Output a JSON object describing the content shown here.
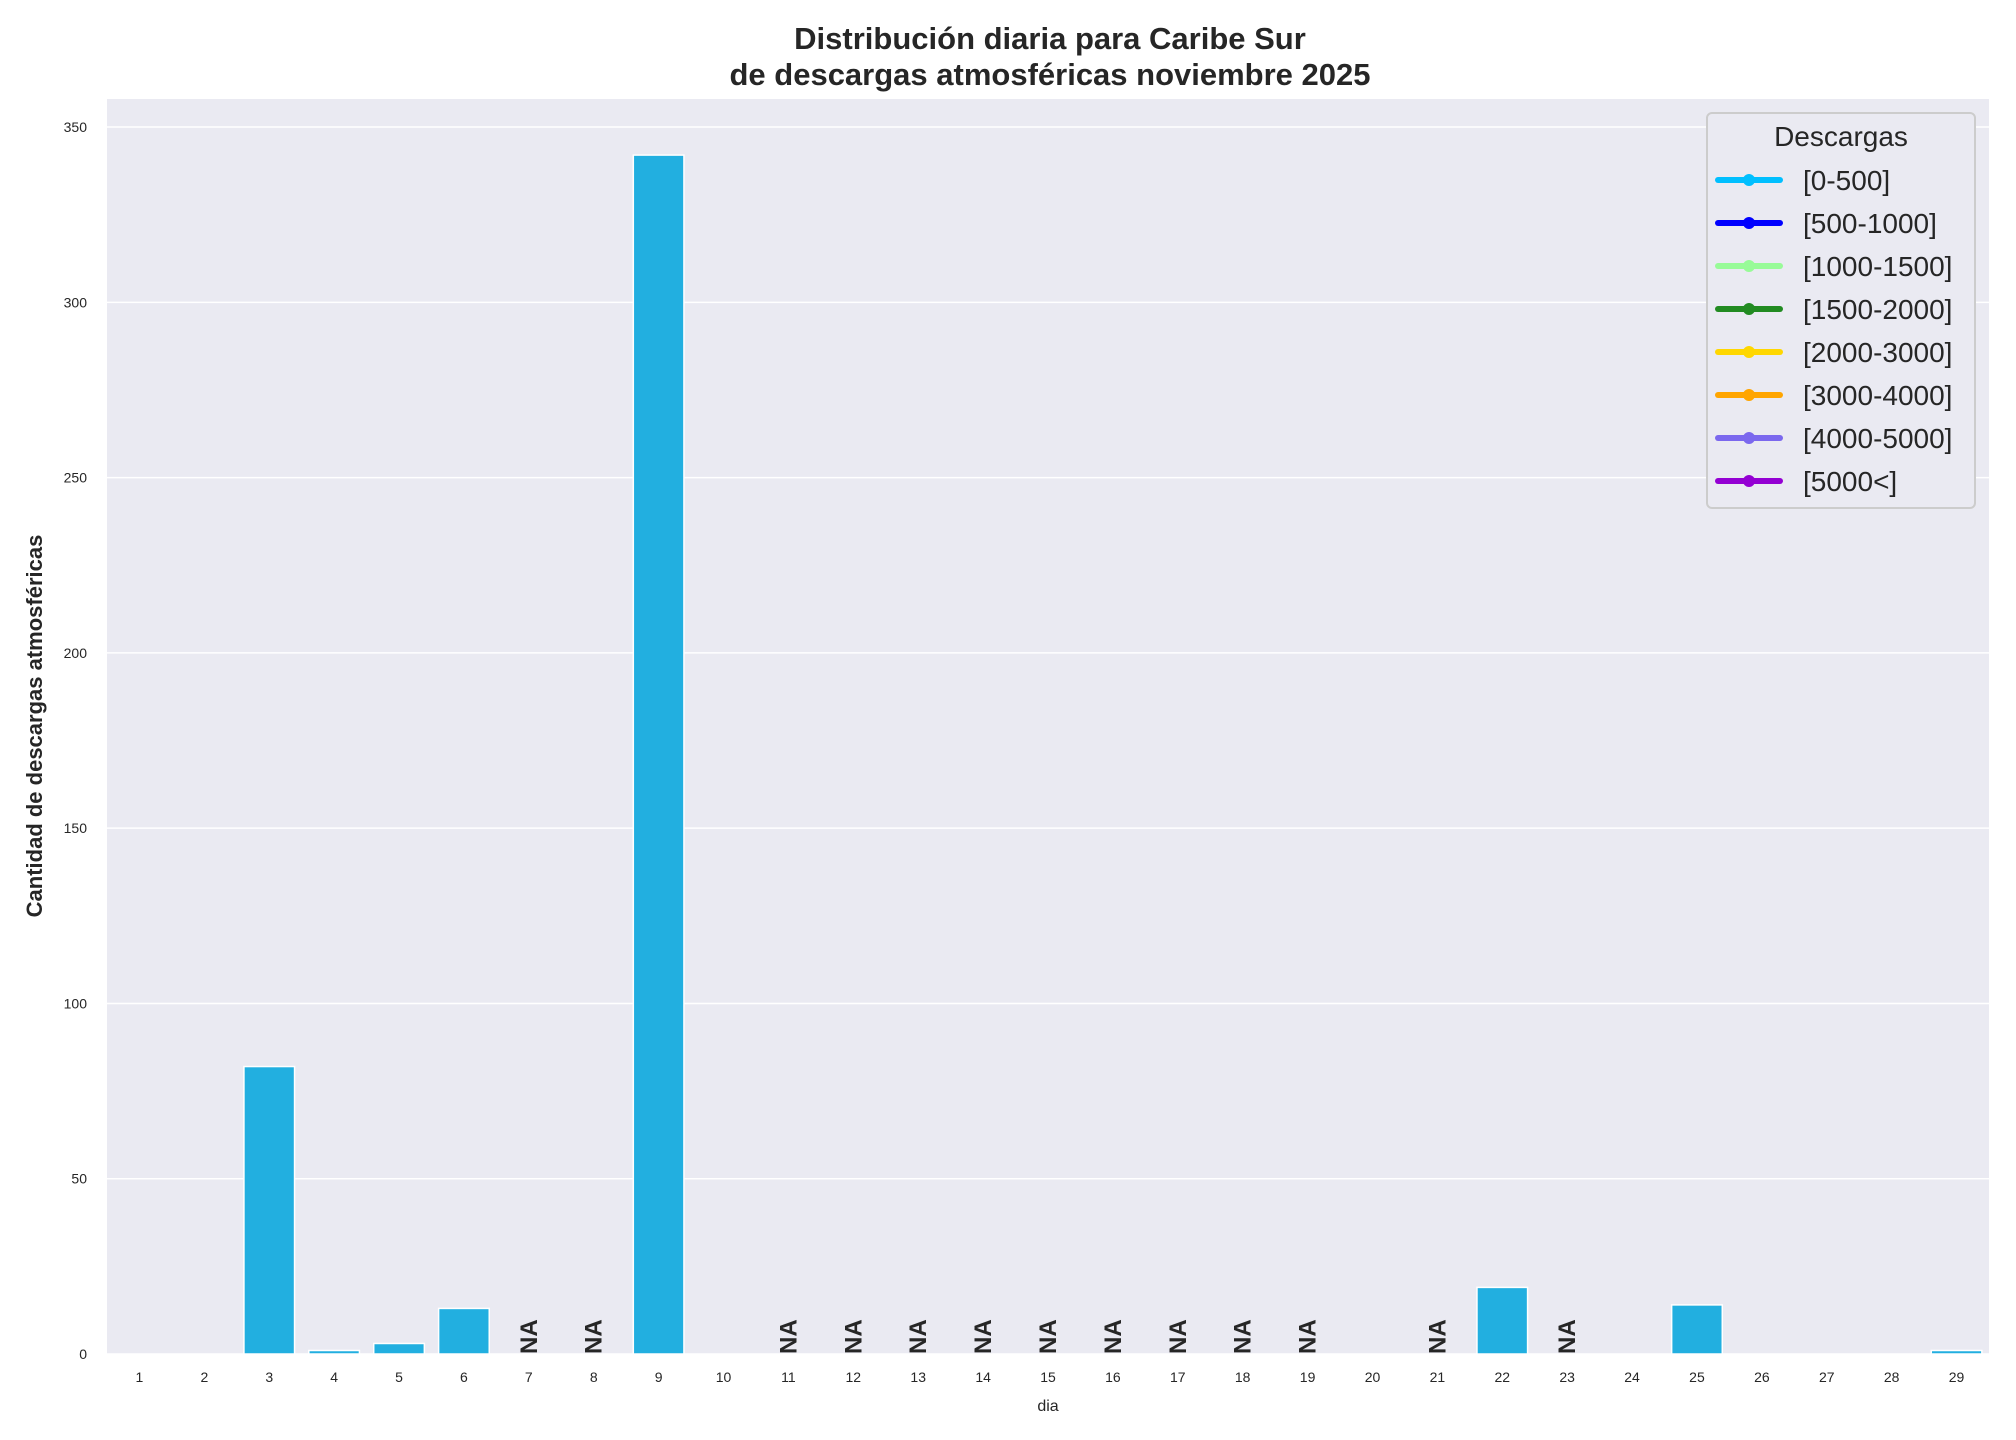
{
  "chart_data": {
    "type": "bar",
    "title_line1": "Distribución diaria para Caribe Sur",
    "title_line2": "de descargas atmosféricas noviembre 2025",
    "xlabel": "dia",
    "ylabel": "Cantidad de descargas atmosféricas",
    "ylim": [
      0,
      358
    ],
    "yticks": [
      0,
      50,
      100,
      150,
      200,
      250,
      300,
      350
    ],
    "grid": true,
    "categories": [
      "1",
      "2",
      "3",
      "4",
      "5",
      "6",
      "7",
      "8",
      "9",
      "10",
      "11",
      "12",
      "13",
      "14",
      "15",
      "16",
      "17",
      "18",
      "19",
      "20",
      "21",
      "22",
      "23",
      "24",
      "25",
      "26",
      "27",
      "28",
      "29"
    ],
    "values": [
      0,
      0,
      82,
      1,
      3,
      13,
      null,
      null,
      342,
      0,
      null,
      null,
      null,
      null,
      null,
      null,
      null,
      null,
      null,
      0,
      null,
      19,
      null,
      0,
      14,
      0,
      0,
      0,
      1
    ],
    "na_label": "NA",
    "bar_color": "#22afe0",
    "legend": {
      "title": "Descargas",
      "placement": "top-right",
      "entries": [
        {
          "label": "[0-500]",
          "color": "#00bfff"
        },
        {
          "label": "[500-1000]",
          "color": "#0000ff"
        },
        {
          "label": "[1000-1500]",
          "color": "#98fb98"
        },
        {
          "label": "[1500-2000]",
          "color": "#228b22"
        },
        {
          "label": "[2000-3000]",
          "color": "#ffd700"
        },
        {
          "label": "[3000-4000]",
          "color": "#ffa500"
        },
        {
          "label": "[4000-5000]",
          "color": "#7b68ee"
        },
        {
          "label": "[5000<]",
          "color": "#9400d3"
        }
      ]
    }
  }
}
